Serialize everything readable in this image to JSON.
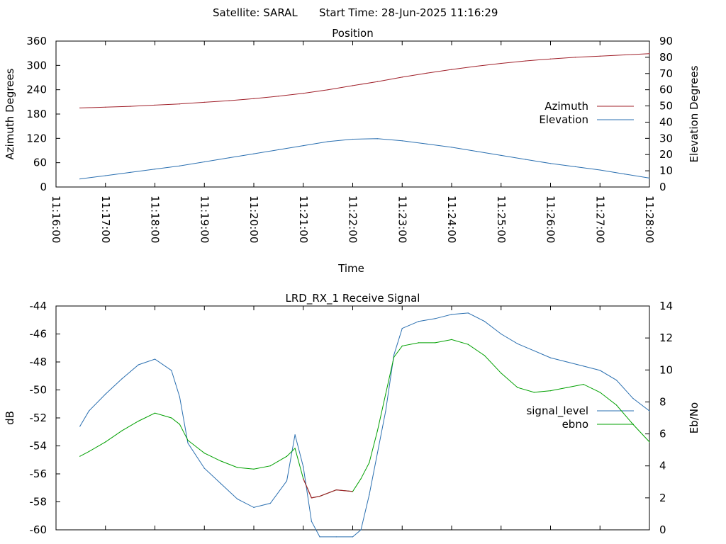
{
  "page": {
    "header_satellite": "Satellite: SARAL",
    "header_start": "Start Time: 28-Jun-2025 11:16:29"
  },
  "chart_data": [
    {
      "id": "position",
      "type": "line",
      "title": "Position",
      "xlabel": "Time",
      "ylabel_left": "Azimuth Degrees",
      "ylabel_right": "Elevation Degrees",
      "x_ticks": [
        "11:16:00",
        "11:17:00",
        "11:18:00",
        "11:19:00",
        "11:20:00",
        "11:21:00",
        "11:22:00",
        "11:23:00",
        "11:24:00",
        "11:25:00",
        "11:26:00",
        "11:27:00",
        "11:28:00"
      ],
      "xlim": [
        "11:16:00",
        "11:28:00"
      ],
      "y_left_ticks": [
        0,
        60,
        120,
        180,
        240,
        300,
        360
      ],
      "y_left_lim": [
        0,
        360
      ],
      "y_right_ticks": [
        0,
        10,
        20,
        30,
        40,
        50,
        60,
        70,
        80,
        90
      ],
      "y_right_lim": [
        0,
        90
      ],
      "legend_position": "right",
      "grid": false,
      "series": [
        {
          "name": "Azimuth",
          "axis": "left",
          "color": "#a0202a",
          "x": [
            "11:16:29",
            "11:17:00",
            "11:17:30",
            "11:18:00",
            "11:18:30",
            "11:19:00",
            "11:19:30",
            "11:20:00",
            "11:20:30",
            "11:21:00",
            "11:21:30",
            "11:22:00",
            "11:22:30",
            "11:23:00",
            "11:23:30",
            "11:24:00",
            "11:24:30",
            "11:25:00",
            "11:25:30",
            "11:26:00",
            "11:26:30",
            "11:27:00",
            "11:27:30",
            "11:28:00"
          ],
          "values": [
            195,
            197,
            199,
            202,
            205,
            209,
            213,
            218,
            224,
            231,
            240,
            250,
            260,
            271,
            281,
            290,
            298,
            305,
            311,
            316,
            320,
            323,
            326,
            329
          ]
        },
        {
          "name": "Elevation",
          "axis": "right",
          "color": "#2a6fb0",
          "x": [
            "11:16:29",
            "11:17:00",
            "11:17:30",
            "11:18:00",
            "11:18:30",
            "11:19:00",
            "11:19:30",
            "11:20:00",
            "11:20:30",
            "11:21:00",
            "11:21:30",
            "11:22:00",
            "11:22:30",
            "11:23:00",
            "11:23:30",
            "11:24:00",
            "11:24:30",
            "11:25:00",
            "11:25:30",
            "11:26:00",
            "11:26:30",
            "11:27:00",
            "11:27:30",
            "11:28:00"
          ],
          "values": [
            5,
            7,
            9,
            11,
            13,
            15.5,
            18,
            20.5,
            23,
            25.5,
            28,
            29.5,
            29.8,
            28.5,
            26.5,
            24.5,
            22,
            19.5,
            17,
            14.5,
            12.5,
            10.5,
            8,
            5.5
          ]
        }
      ]
    },
    {
      "id": "receive_signal",
      "type": "line",
      "title": "LRD_RX_1 Receive Signal",
      "ylabel_left": "dB",
      "ylabel_right": "Eb/No",
      "xlim": [
        "11:16:00",
        "11:28:00"
      ],
      "y_left_ticks": [
        -60,
        -58,
        -56,
        -54,
        -52,
        -50,
        -48,
        -46,
        -44
      ],
      "y_left_lim": [
        -60,
        -44
      ],
      "y_right_ticks": [
        0,
        2,
        4,
        6,
        8,
        10,
        12,
        14
      ],
      "y_right_lim": [
        0,
        14
      ],
      "legend_position": "right",
      "grid": false,
      "locked_color": "#a0202a",
      "locked_range": [
        "11:21:00",
        "11:22:00"
      ],
      "series": [
        {
          "name": "signal_level",
          "axis": "left",
          "color": "#2a6fb0",
          "x": [
            "11:16:29",
            "11:16:40",
            "11:17:00",
            "11:17:20",
            "11:17:40",
            "11:18:00",
            "11:18:20",
            "11:18:30",
            "11:18:40",
            "11:19:00",
            "11:19:20",
            "11:19:40",
            "11:20:00",
            "11:20:20",
            "11:20:40",
            "11:20:50",
            "11:21:00",
            "11:21:10",
            "11:21:20",
            "11:21:40",
            "11:22:00",
            "11:22:10",
            "11:22:20",
            "11:22:30",
            "11:22:40",
            "11:22:50",
            "11:23:00",
            "11:23:20",
            "11:23:40",
            "11:24:00",
            "11:24:20",
            "11:24:40",
            "11:25:00",
            "11:25:20",
            "11:25:40",
            "11:26:00",
            "11:26:20",
            "11:26:40",
            "11:27:00",
            "11:27:20",
            "11:27:40",
            "11:28:00"
          ],
          "values": [
            -52.6,
            -51.5,
            -50.3,
            -49.2,
            -48.2,
            -47.8,
            -48.6,
            -50.5,
            -53.8,
            -55.6,
            -56.7,
            -57.8,
            -58.4,
            -58.1,
            -56.5,
            -53.2,
            -55.5,
            -59.4,
            -60.5,
            -60.5,
            -60.5,
            -60.0,
            -57.5,
            -54.5,
            -51.5,
            -47.5,
            -45.6,
            -45.1,
            -44.9,
            -44.6,
            -44.5,
            -45.1,
            -46.0,
            -46.7,
            -47.2,
            -47.7,
            -48.0,
            -48.3,
            -48.6,
            -49.3,
            -50.6,
            -51.5
          ]
        },
        {
          "name": "ebno",
          "axis": "right",
          "color": "#00a000",
          "x": [
            "11:16:29",
            "11:16:40",
            "11:17:00",
            "11:17:20",
            "11:17:40",
            "11:18:00",
            "11:18:20",
            "11:18:30",
            "11:18:40",
            "11:19:00",
            "11:19:20",
            "11:19:40",
            "11:20:00",
            "11:20:20",
            "11:20:40",
            "11:20:50",
            "11:21:00",
            "11:21:10",
            "11:21:20",
            "11:21:40",
            "11:22:00",
            "11:22:10",
            "11:22:20",
            "11:22:30",
            "11:22:40",
            "11:22:50",
            "11:23:00",
            "11:23:20",
            "11:23:40",
            "11:24:00",
            "11:24:20",
            "11:24:40",
            "11:25:00",
            "11:25:20",
            "11:25:40",
            "11:26:00",
            "11:26:20",
            "11:26:40",
            "11:27:00",
            "11:27:20",
            "11:27:40",
            "11:28:00"
          ],
          "values": [
            4.6,
            4.9,
            5.5,
            6.2,
            6.8,
            7.3,
            7.0,
            6.6,
            5.6,
            4.8,
            4.3,
            3.9,
            3.8,
            4.0,
            4.6,
            5.1,
            3.2,
            2.0,
            2.1,
            2.5,
            2.4,
            3.2,
            4.2,
            6.2,
            8.5,
            10.8,
            11.5,
            11.7,
            11.7,
            11.9,
            11.6,
            10.9,
            9.8,
            8.9,
            8.6,
            8.7,
            8.9,
            9.1,
            8.6,
            7.8,
            6.6,
            5.5
          ]
        }
      ]
    }
  ]
}
